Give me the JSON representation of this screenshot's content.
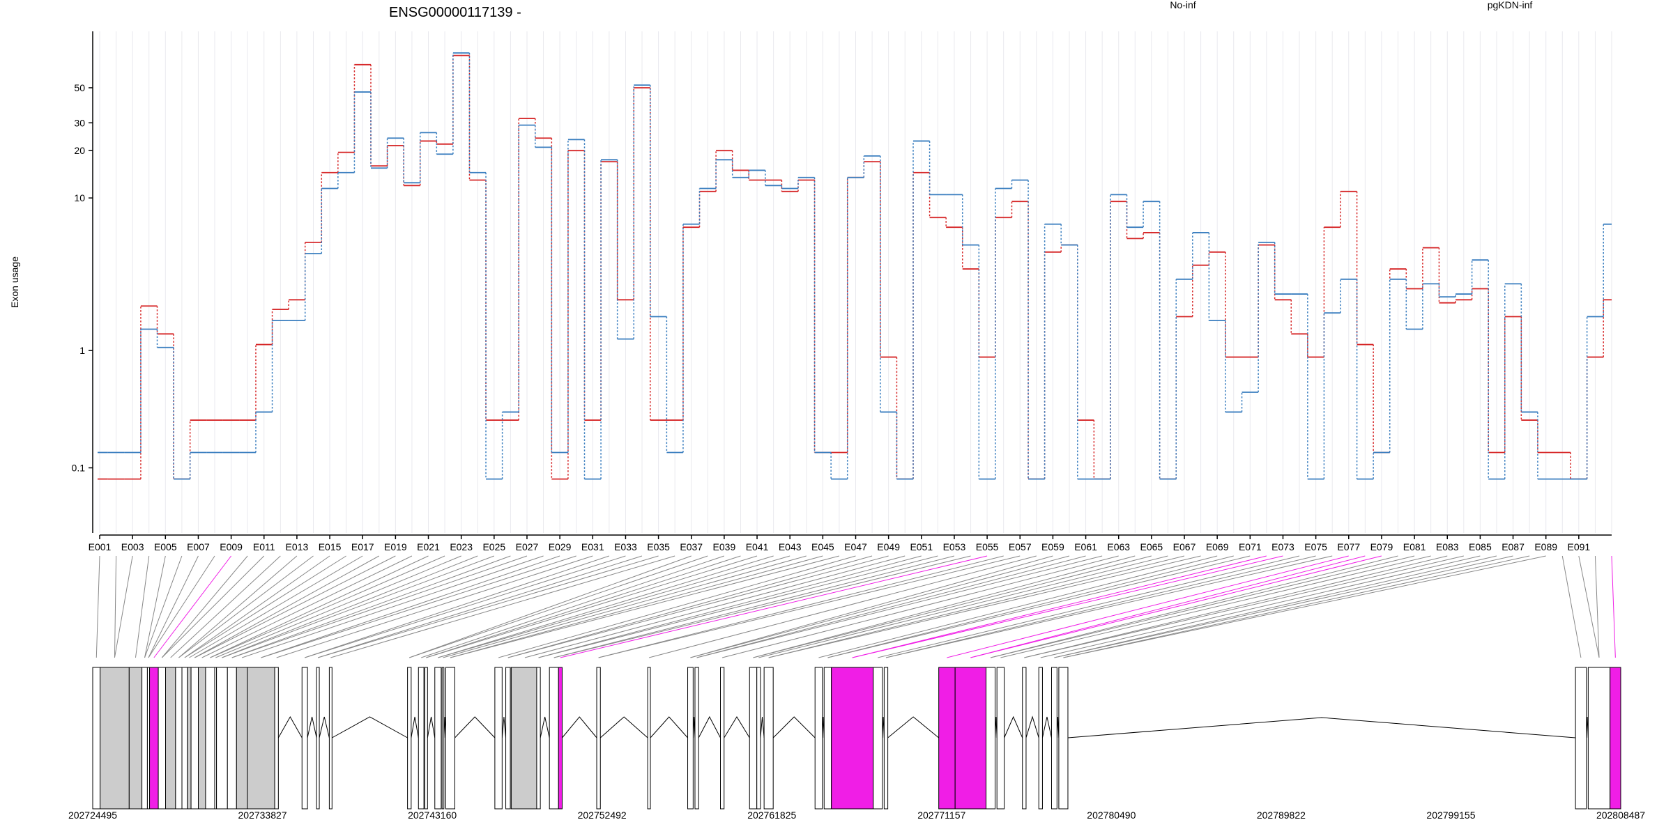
{
  "chart_data": {
    "type": "line",
    "title": "ENSG00000117139 -",
    "ylabel": "Exon usage",
    "xlabel": "",
    "yscale": "log",
    "yticks": [
      "0.1",
      "1",
      "10",
      "20",
      "30",
      "50"
    ],
    "legend_placement": "top",
    "series": [
      {
        "name": "No-inf",
        "color": "#d62728",
        "values": [
          0.07,
          0.07,
          0.07,
          2.0,
          1.3,
          0.07,
          0.3,
          0.3,
          0.3,
          0.3,
          1.1,
          1.9,
          2.2,
          5.2,
          14.5,
          19.5,
          70,
          16,
          21.5,
          12,
          23,
          22,
          80,
          13,
          0.3,
          0.3,
          32,
          24,
          0.07,
          20,
          0.3,
          17,
          2.2,
          50,
          0.3,
          0.3,
          6.5,
          11,
          20,
          15,
          13,
          13,
          11,
          13,
          0.15,
          0.15,
          13.5,
          17,
          0.9,
          0.07,
          14.5,
          7.5,
          6.5,
          3.5,
          0.9,
          7.5,
          9.5,
          0.07,
          4.5,
          5,
          0.3,
          0.07,
          9.5,
          5.5,
          6,
          0.07,
          1.7,
          3.7,
          4.5,
          0.9,
          0.9,
          5,
          2.2,
          1.3,
          0.9,
          6.5,
          11,
          1.1,
          0.15,
          3.5,
          2.6,
          4.8,
          2.1,
          2.2,
          2.6,
          0.15,
          1.7,
          0.3,
          0.15,
          0.15,
          0.07,
          0.9,
          2.2
        ]
      },
      {
        "name": "pgKDN-inf",
        "color": "#3a7ebf",
        "values": [
          0.15,
          0.15,
          0.15,
          1.4,
          1.05,
          0.07,
          0.15,
          0.15,
          0.15,
          0.15,
          0.35,
          1.6,
          1.6,
          4.4,
          11.5,
          14.5,
          47,
          15.5,
          24,
          12.5,
          26,
          19,
          83,
          14.5,
          0.07,
          0.35,
          29,
          21,
          0.15,
          23.5,
          0.07,
          17.5,
          1.2,
          52,
          1.7,
          0.15,
          6.8,
          11.5,
          17.5,
          13.5,
          15,
          12,
          11.5,
          13.5,
          0.15,
          0.07,
          13.5,
          18.5,
          0.35,
          0.07,
          23,
          10.5,
          10.5,
          5,
          0.07,
          11.5,
          13,
          0.07,
          6.8,
          5,
          0.07,
          0.07,
          10.5,
          6.5,
          9.5,
          0.07,
          3,
          6,
          1.6,
          0.35,
          0.5,
          5.2,
          2.4,
          2.4,
          0.07,
          1.8,
          3,
          0.07,
          0.15,
          3,
          1.4,
          2.8,
          2.3,
          2.4,
          4,
          0.07,
          2.8,
          0.35,
          0.07,
          0.07,
          0.07,
          1.7,
          6.8
        ]
      }
    ],
    "exon_labels": [
      "E001",
      "E003",
      "E005",
      "E007",
      "E009",
      "E011",
      "E013",
      "E015",
      "E017",
      "E019",
      "E021",
      "E023",
      "E025",
      "E027",
      "E029",
      "E031",
      "E033",
      "E035",
      "E037",
      "E039",
      "E041",
      "E043",
      "E045",
      "E047",
      "E049",
      "E051",
      "E053",
      "E055",
      "E057",
      "E059",
      "E061",
      "E063",
      "E065",
      "E067",
      "E069",
      "E071",
      "E073",
      "E075",
      "E077",
      "E079",
      "E081",
      "E083",
      "E085",
      "E087",
      "E089",
      "E091"
    ],
    "genome_ticks": [
      "202724495",
      "202733827",
      "202743160",
      "202752492",
      "202761825",
      "202771157",
      "202780490",
      "202789822",
      "202799155",
      "202808487"
    ],
    "genome_range": [
      202724495,
      202808487
    ],
    "highlight_color": "#f01ee6",
    "gene_model_exons": [
      [
        202724495,
        202724900,
        "white"
      ],
      [
        202724900,
        202726500,
        "grey"
      ],
      [
        202726500,
        202727200,
        "grey"
      ],
      [
        202727200,
        202727500,
        "white"
      ],
      [
        202727500,
        202727620,
        "white"
      ],
      [
        202727620,
        202728100,
        "magenta"
      ],
      [
        202728100,
        202728500,
        "white"
      ],
      [
        202728500,
        202729050,
        "grey"
      ],
      [
        202729050,
        202729400,
        "white"
      ],
      [
        202729400,
        202729700,
        "white"
      ],
      [
        202729700,
        202729900,
        "grey"
      ],
      [
        202729900,
        202730300,
        "white"
      ],
      [
        202730300,
        202730700,
        "grey"
      ],
      [
        202730700,
        202731200,
        "white"
      ],
      [
        202731200,
        202731300,
        "white"
      ],
      [
        202731300,
        202731900,
        "white"
      ],
      [
        202731900,
        202732400,
        "white"
      ],
      [
        202732400,
        202733000,
        "grey"
      ],
      [
        202733000,
        202734500,
        "grey"
      ],
      [
        202734500,
        202734700,
        "white"
      ],
      [
        202736000,
        202736300,
        "white"
      ],
      [
        202736800,
        202736950,
        "white"
      ],
      [
        202737500,
        202737650,
        "white"
      ],
      [
        202741800,
        202742000,
        "white"
      ],
      [
        202742400,
        202742700,
        "white"
      ],
      [
        202742750,
        202742900,
        "white"
      ],
      [
        202743300,
        202743650,
        "white"
      ],
      [
        202743700,
        202743800,
        "white"
      ],
      [
        202743900,
        202744400,
        "white"
      ],
      [
        202746600,
        202747000,
        "white"
      ],
      [
        202747200,
        202747450,
        "white"
      ],
      [
        202747500,
        202749000,
        "grey"
      ],
      [
        202748900,
        202749100,
        "white"
      ],
      [
        202749600,
        202750100,
        "white"
      ],
      [
        202750100,
        202750300,
        "magenta"
      ],
      [
        202752200,
        202752400,
        "white"
      ],
      [
        202755000,
        202755150,
        "white"
      ],
      [
        202757200,
        202757500,
        "white"
      ],
      [
        202757600,
        202757800,
        "white"
      ],
      [
        202759000,
        202759200,
        "white"
      ],
      [
        202760600,
        202761000,
        "white"
      ],
      [
        202761000,
        202761200,
        "white"
      ],
      [
        202761400,
        202761900,
        "white"
      ],
      [
        202764200,
        202764600,
        "white"
      ],
      [
        202764700,
        202765100,
        "white"
      ],
      [
        202765100,
        202767400,
        "magenta"
      ],
      [
        202767400,
        202767900,
        "white"
      ],
      [
        202768000,
        202768200,
        "white"
      ],
      [
        202771000,
        202771900,
        "magenta"
      ],
      [
        202771900,
        202773600,
        "magenta"
      ],
      [
        202773600,
        202774100,
        "white"
      ],
      [
        202774200,
        202774600,
        "white"
      ],
      [
        202775600,
        202775800,
        "white"
      ],
      [
        202776500,
        202776700,
        "white"
      ],
      [
        202777200,
        202777500,
        "white"
      ],
      [
        202777600,
        202778100,
        "white"
      ],
      [
        202806000,
        202806600,
        "white"
      ],
      [
        202806700,
        202807900,
        "white"
      ],
      [
        202807900,
        202808487,
        "magenta"
      ]
    ]
  }
}
